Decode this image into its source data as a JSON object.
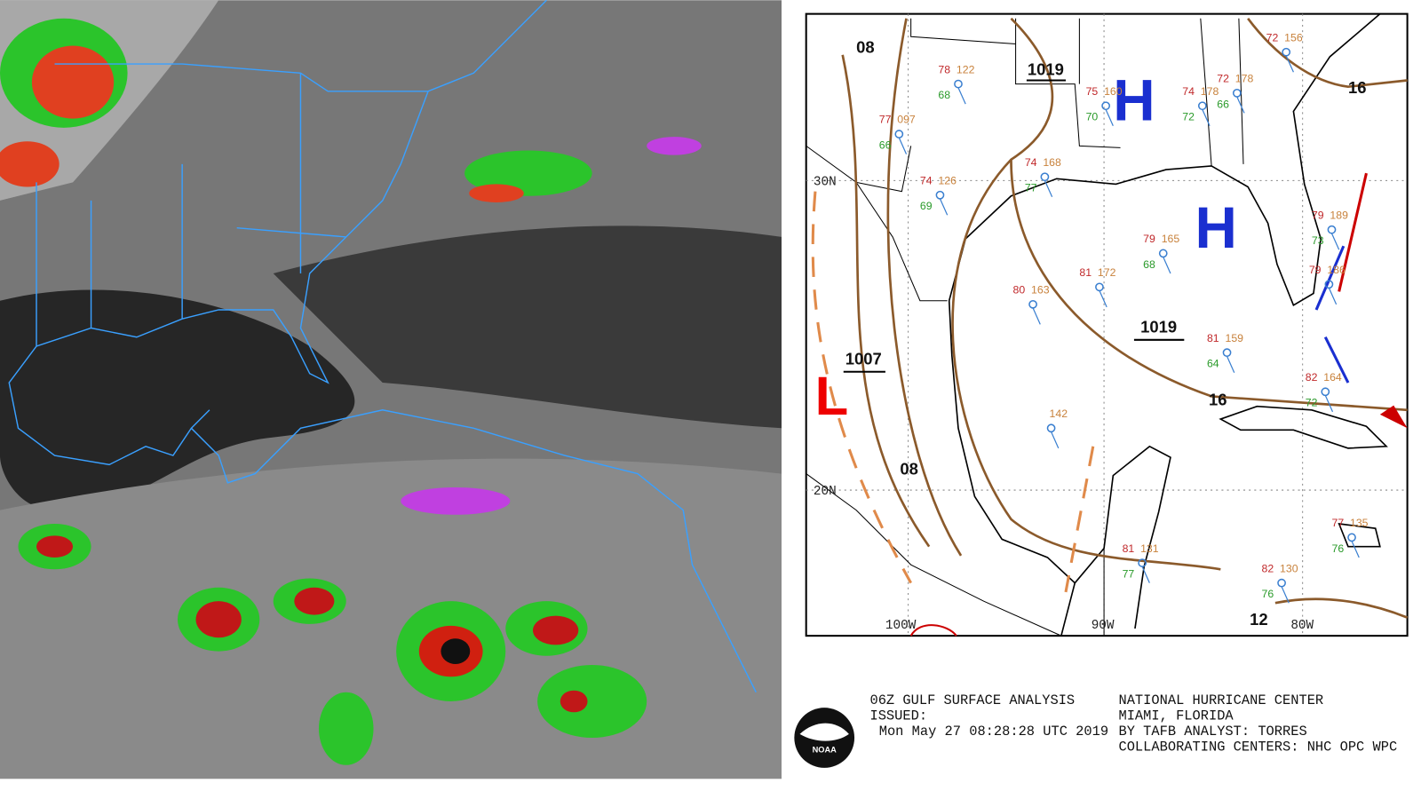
{
  "map": {
    "highs": [
      "H",
      "H"
    ],
    "lows": [
      "L"
    ],
    "pressure_labels": [
      "1019",
      "1007",
      "1019"
    ],
    "isobar_labels": [
      "08",
      "16",
      "16",
      "08",
      "12"
    ],
    "grid_labels": [
      "30N",
      "20N",
      "100W",
      "90W",
      "80W"
    ],
    "stations": [
      {
        "temp": "78",
        "pres": "122",
        "dew": "68"
      },
      {
        "temp": "77",
        "pres": "097",
        "dew": "66"
      },
      {
        "temp": "74",
        "pres": "126",
        "dew": "69"
      },
      {
        "temp": "74",
        "pres": "168",
        "dew": "77"
      },
      {
        "temp": "75",
        "pres": "160",
        "dew": "70"
      },
      {
        "temp": "74",
        "pres": "178",
        "dew": "72"
      },
      {
        "temp": "72",
        "pres": "178",
        "dew": "66"
      },
      {
        "temp": "79",
        "pres": "165",
        "dew": "68"
      },
      {
        "temp": "81",
        "pres": "172"
      },
      {
        "temp": "80",
        "pres": "163"
      },
      {
        "pres": "142"
      },
      {
        "temp": "72",
        "pres": "156"
      },
      {
        "temp": "79",
        "pres": "189",
        "dew": "73"
      },
      {
        "temp": "79",
        "pres": "186"
      },
      {
        "temp": "81",
        "pres": "159",
        "dew": "64"
      },
      {
        "temp": "82",
        "pres": "164",
        "dew": "72"
      },
      {
        "temp": "77",
        "pres": "135",
        "dew": "76"
      },
      {
        "temp": "82",
        "pres": "130",
        "dew": "76"
      },
      {
        "temp": "81",
        "pres": "131",
        "dew": "77"
      }
    ]
  },
  "footer": {
    "title": "06Z GULF SURFACE ANALYSIS",
    "issued": "ISSUED:",
    "timestamp": "Mon May 27 08:28:28 UTC 2019",
    "center": "NATIONAL HURRICANE CENTER",
    "location": "MIAMI, FLORIDA",
    "analyst": "BY TAFB ANALYST: TORRES",
    "collab": "COLLABORATING CENTERS: NHC OPC WPC",
    "logo": "NOAA"
  }
}
